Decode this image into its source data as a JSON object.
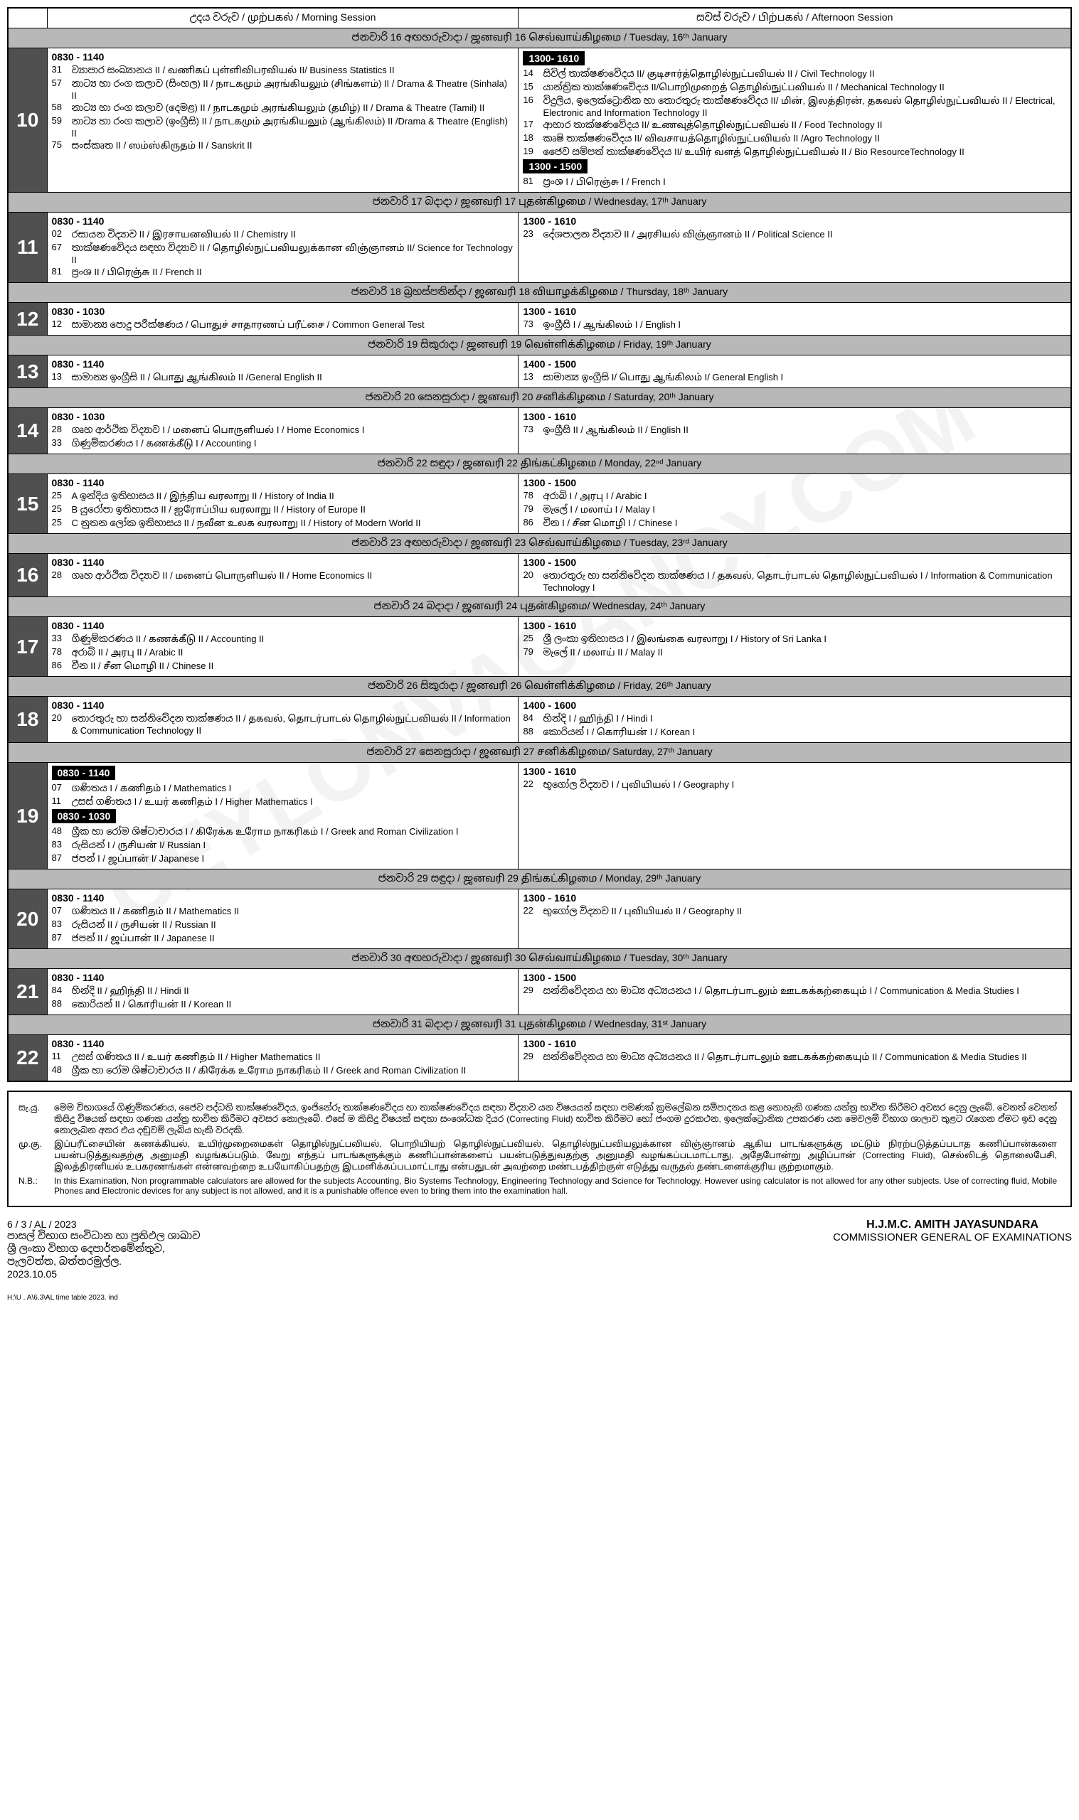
{
  "watermark": "CEYLONVACANCY.COM",
  "headers": {
    "morning": "උදය වරුව / முற்பகல்  / Morning Session",
    "afternoon": "සවස් වරුව / பிற்பகல்  / Afternoon Session"
  },
  "days": [
    {
      "num": "10",
      "date": "ජනවාරි 16 අඟහරුවාදා / ஜனவரி  16   செவ்வாய்கிழமை / Tuesday, 16ᵗʰ January",
      "morning": {
        "time": "0830 - 1140",
        "items": [
          {
            "code": "31",
            "text": "ව්‍යාපාර සංඛ්‍යානය  II / வணிகப்  புள்ளிவிபரவியல் II/ Business Statistics II"
          },
          {
            "code": "57",
            "text": "නාට්‍ය හා රංග කලාව (සිංහල)  II / நாடகமும் அரங்கியலும் (சிங்களம்) II / Drama & Theatre  (Sinhala)  II"
          },
          {
            "code": "58",
            "text": "නාට්‍ය හා රංග කලාව (දෙමළ)  II / நாடகமும் அரங்கியலும் (தமிழ்) II / Drama & Theatre  (Tamil) II"
          },
          {
            "code": "59",
            "text": "නාට්‍ය හා රංග කලාව (ඉංග්‍රීසි)   II / நாடகமும்  அரங்கியலும் (ஆங்கிலம்)   II /Drama & Theatre  (English) II"
          },
          {
            "code": "75",
            "text": "සංස්කෘත  II  / ஸம்ஸ்கிருதம் II / Sanskrit  II"
          }
        ]
      },
      "afternoon": {
        "blocks": [
          {
            "time": "1300- 1610",
            "black": true,
            "items": [
              {
                "code": "14",
                "text": "සිවිල් තාක්ෂණවේදය II/ குடிசார்த்தொழில்நுட்பவியல் II / Civil  Technology II"
              },
              {
                "code": "15",
                "text": "යාන්ත්‍රික තාක්ෂණවේදය II/பொறிமுறைத் தொழில்நுட்பவியல் II / Mechanical Technology II"
              },
              {
                "code": "16",
                "text": "විදුලිය, ඉලෙක්ට්‍රොනික හා තොරතුරු තාක්ෂණවේදය II/ மின், இலத்திரன், தகவல் தொழில்நுட்பவியல் II / Electrical, Electronic and Information Technology II"
              },
              {
                "code": "17",
                "text": "ආහාර තාක්ෂණවේදය II/ உணவுத்தொழில்நுட்பவியல்  II / Food Technology II"
              },
              {
                "code": "18",
                "text": "කෘෂි තාක්ෂණවේදය II/ விவசாயத்தொழில்நுட்பவியல்  II /Agro Technology II"
              },
              {
                "code": "19",
                "text": "ජෛව සම්පත් තාක්ෂණවේදය II/ உயிர்  வளத்  தொழில்நுட்பவியல் II / Bio ResourceTechnology II"
              }
            ]
          },
          {
            "time": "1300 - 1500",
            "black": true,
            "items": [
              {
                "code": "81",
                "text": "ප්‍රංශ I / பிரெஞ்சு I  / French I"
              }
            ]
          }
        ]
      }
    },
    {
      "num": "11",
      "date": "ජනවාරි 17 බදාදා  /  ஜனவரி 17 புதன்கிழமை  /  Wednesday, 17ᵗʰ  January",
      "morning": {
        "time": "0830 - 1140",
        "items": [
          {
            "code": "02",
            "text": "රසායන විද්‍යාව  II / இரசாயனவியல் II / Chemistry II"
          },
          {
            "code": "67",
            "text": "තාක්ෂණවේදය සඳහා විද්‍යාව II / தொழில்நுட்பவியலுக்கான விஞ்ஞானம் II/ Science for Technology II"
          },
          {
            "code": "81",
            "text": "ප්‍රංශ  II / பிரெஞ்சு II / French II"
          }
        ]
      },
      "afternoon": {
        "time": "1300 - 1610",
        "items": [
          {
            "code": "23",
            "text": "දේශපාලන විද්‍යාව II / அரசியல்  விஞ்ஞானம் II / Political Science II"
          }
        ]
      }
    },
    {
      "num": "12",
      "date": "ජනවාරි 18 බ්‍රහස්පතින්දා / ஜனவரி  18  வியாழக்கிழமை  /  Thursday, 18ᵗʰ January",
      "morning": {
        "time": "0830 - 1030",
        "items": [
          {
            "code": "12",
            "text": "සාමාන්‍ය පොදු පරීක්ෂණය / பொதுச்  சாதாரணப் பரீட்சை / Common General Test"
          }
        ]
      },
      "afternoon": {
        "time": "1300 - 1610",
        "items": [
          {
            "code": "73",
            "text": "ඉංග්‍රීසි  I / ஆங்கிலம் I / English I"
          }
        ]
      }
    },
    {
      "num": "13",
      "date": "ජනවාරි 19 සිකුරාදා / ஜனவரி     19 வெள்ளிக்கிழமை / Friday, 19ᵗʰ   January",
      "morning": {
        "time": "0830 - 1140",
        "items": [
          {
            "code": "13",
            "text": "සාමාන්‍ය ඉංග්‍රීසි  II / பொது  ஆங்கிலம் II /General English II"
          }
        ]
      },
      "afternoon": {
        "time": "1400 - 1500",
        "items": [
          {
            "code": "13",
            "text": "සාමාන්‍ය ඉංග්‍රීසි  I/ பொது  ஆங்கிலம் I/ General English  I"
          }
        ]
      }
    },
    {
      "num": "14",
      "date": "ජනවාරි 20 සෙනසුරාදා / ஜனவரி 20  சனிக்கிழமை  / Saturday, 20ᵗʰ January",
      "morning": {
        "time": "0830 - 1030",
        "items": [
          {
            "code": "28",
            "text": "ගෘහ ආර්ථික විද්‍යාව I / மனைப்  பொருளியல் I / Home Economics I"
          },
          {
            "code": "33",
            "text": "ගිණුම්කරණය I / கணக்கீடு I / Accounting I"
          }
        ]
      },
      "afternoon": {
        "time": "1300 - 1610",
        "items": [
          {
            "code": "73",
            "text": "ඉංග්‍රීසි II / ஆங்கிலம் II / English II"
          }
        ]
      }
    },
    {
      "num": "15",
      "date": "ජනවාරි 22 සඳුදා / ஜனவரி 22  திங்கட்கிழமை  / Monday, 22ⁿᵈ January",
      "morning": {
        "time": "0830 - 1140",
        "items": [
          {
            "code": "25",
            "text": "A ඉන්දිය ඉතිහාසය  II  / இந்திய  வரலாறு  II / History of India II"
          },
          {
            "code": "25",
            "text": "B  යුරෝපා ඉතිහාසය  II / ஐரோப்பிய  வரலாறு II / History of  Europe II"
          },
          {
            "code": "25",
            "text": "C නුතන ලෝක ඉතිහාසය  II / நவீன உலக  வரலாறு II / History of Modern World  II"
          }
        ]
      },
      "afternoon": {
        "time": "1300 - 1500",
        "items": [
          {
            "code": "78",
            "text": "අරාබි  I / அரபு I / Arabic I"
          },
          {
            "code": "79",
            "text": "මැලේ  I / மலாய் I / Malay I"
          },
          {
            "code": "86",
            "text": "චීන  I / சீன மொழி  I / Chinese I"
          }
        ]
      }
    },
    {
      "num": "16",
      "date": "ජනවාරි 23 අඟහරුවාදා   / ஜனவரி  23  செவ்வாய்கிழமை  / Tuesday, 23ʳᵈ January",
      "morning": {
        "time": "0830 - 1140",
        "items": [
          {
            "code": "28",
            "text": "ගෘහ ආර්ථික විද්‍යාව II / மனைப்  பொருளியல் II / Home Economics II"
          }
        ]
      },
      "afternoon": {
        "time": "1300 - 1500",
        "items": [
          {
            "code": "20",
            "text": "තොරතුරු හා සන්නිවේදන තාක්ෂණය   I / தகவல், தொடர்பாடல் தொழில்நுட்பவியல்   I / Information & Communication  Technology I"
          }
        ]
      }
    },
    {
      "num": "17",
      "date": "ජනවාරි 24 බදාදා  /  ஜனவரி   24 புதன்கிழமை/ Wednesday,  24ᵗʰ January",
      "morning": {
        "time": "0830 - 1140",
        "items": [
          {
            "code": "33",
            "text": "ගිණුම්කරණය II / கணக்கீடு II / Accounting II"
          },
          {
            "code": "78",
            "text": "අරාබි  II / அரபு II / Arabic II"
          },
          {
            "code": "86",
            "text": "චීන  II / சீன மொழி  II / Chinese II"
          }
        ]
      },
      "afternoon": {
        "time": "1300 - 1610",
        "items": [
          {
            "code": "25",
            "text": "ශ්‍රී ලංකා ඉතිහාසය I / இலங்கை  வரலாறு I / History of  Sri Lanka I"
          },
          {
            "code": "79",
            "text": "මැලේ  II / மலாய் II / Malay II"
          }
        ]
      }
    },
    {
      "num": "18",
      "date": "ජනවාරි 26 සිකුරාදා  /  ஜனவரி   26 வெள்ளிக்கிழமை   /  Friday, 26ᵗʰ   January",
      "morning": {
        "time": "0830 - 1140",
        "items": [
          {
            "code": "20",
            "text": "තොරතුරු හා සන්නිවේදන තාක්ෂණය II / தகவல், தொடர்பாடல் தொழில்நுட்பவியல்   II / Information & Communication Technology II"
          }
        ]
      },
      "afternoon": {
        "time": "1400 - 1600",
        "items": [
          {
            "code": "84",
            "text": "හින්දි I / ஹிந்தி I / Hindi I"
          },
          {
            "code": "88",
            "text": "කොරියන් I / கொரியன்  I / Korean I"
          }
        ]
      }
    },
    {
      "num": "19",
      "date": "ජනවාරි 27 සෙනසුරාදා  / ஜனவரி 27   சனிக்கிழமை/ Saturday, 27ᵗʰ    January",
      "morning": {
        "blocks": [
          {
            "time": "0830 - 1140",
            "black": true,
            "items": [
              {
                "code": "07",
                "text": "ගණිතය I / கணிதம் I / Mathematics I"
              },
              {
                "code": "11",
                "text": "උසස් ගණිතය I / உயர்  கணிதம் I / Higher Mathematics I"
              }
            ]
          },
          {
            "time": "0830 - 1030",
            "black": true,
            "items": [
              {
                "code": "48",
                "text": "ග්‍රීක හා රෝම ශිෂ්ටාචාරය I / கிரேக்க  உரோம நாகரிகம் I / Greek and Roman Civilization I"
              },
              {
                "code": "83",
                "text": "රුසියන්  I / ருசியன்   I/ Russian I"
              },
              {
                "code": "87",
                "text": "ජපන්   I / ஜப்பான்  I/ Japanese I"
              }
            ]
          }
        ]
      },
      "afternoon": {
        "time": "1300 - 1610",
        "items": [
          {
            "code": "22",
            "text": "භුගෝල විද්‍යාව  I / புவியியல் I / Geography I"
          }
        ]
      }
    },
    {
      "num": "20",
      "date": "ජනවාරි 29 සඳුදා / ஜனவரி 29   திங்கட்கிழமை  / Monday, 29ᵗʰ   January",
      "morning": {
        "time": "0830 - 1140",
        "items": [
          {
            "code": "07",
            "text": "ගණිතය II / கணிதம் II / Mathematics II"
          },
          {
            "code": "83",
            "text": "රුසියන්  II / ருசியன்  II / Russian II"
          },
          {
            "code": "87",
            "text": "ජපන්   II / ஜப்பான்  II / Japanese II"
          }
        ]
      },
      "afternoon": {
        "time": "1300 - 1610",
        "items": [
          {
            "code": "22",
            "text": "භුගෝල විද්‍යාව  II / புவியியல் II / Geography II"
          }
        ]
      }
    },
    {
      "num": "21",
      "date": "ජනවාරි 30 අඟහරුවාදා / ஜனவரி  30  செவ்வாய்கிழமை  / Tuesday, 30ᵗʰ   January",
      "morning": {
        "time": "0830 - 1140",
        "items": [
          {
            "code": "84",
            "text": "හින්දි II / ஹிந்தி II / Hindi II"
          },
          {
            "code": "88",
            "text": "කොරියන්  II / கொரியன்  II / Korean II"
          }
        ]
      },
      "afternoon": {
        "time": "1300 - 1500",
        "items": [
          {
            "code": "29",
            "text": "සන්නිවේදනය හා මාධ්‍ය අධ්‍යයනය I / தொடர்பாடலும்  ஊடகக்கற்கையும் I / Communication & Media Studies I"
          }
        ]
      }
    },
    {
      "num": "22",
      "date": "ජනවාරි 31 බදාදා   / ஜனவரி  31 புதன்கிழமை  / Wednesday, 31ˢᵗ January",
      "morning": {
        "time": "0830 - 1140",
        "items": [
          {
            "code": "11",
            "text": "උසස් ගණිතය II / உயர்  கணிதம் II / Higher Mathematics II"
          },
          {
            "code": "48",
            "text": "ග්‍රීක හා රෝම ශිෂ්ටාචාරය II / கிரேக்க  உரோம நாகரிகம் II / Greek and Roman Civilization II"
          }
        ]
      },
      "afternoon": {
        "time": "1300 - 1610",
        "items": [
          {
            "code": "29",
            "text": "සන්නිවේදනය හා මාධ්‍ය අධ්‍යයනය II / தொடர்பாடலும்  ஊடகக்கற்கையும் II / Communication & Media Studies II"
          }
        ]
      }
    }
  ],
  "notes": [
    {
      "label": "සැ.යු.",
      "text": "මෙම විභාගයේ ගිණුම්කරණය, ජෛව පද්ධති තාක්ෂණවේදය, ඉංජිනේරු තාක්ෂණවේදය හා තාක්ෂණවේදය සඳහා විද්‍යාව යන විෂයයන් සඳහා පමණක් ක්‍රමලේඛන සම්පාදනය කළ නොහැකි ගණක යන්ත්‍ර භාවිත කිරීමට අවසර දෙනු ලැබේ. වෙනත් වෙනත් කිසිදු විෂයක් සඳහා ගණක යන්ත්‍ර භාවිත කිරීමට අවසර නොලැබේ. එසේ ම කිසිදු විෂයක් සඳහා සංශෝධක දියර (Correcting Fluid) භාවිත කිරීමට හෝ ජංගම දුරකථන, ඉලෙක්ට්‍රොනික උපකරණ යන මෙවලම් විභාග ශාලාව තුළට රැගෙන ඒමට ඉඩ දෙනු නොලැබන අතර එය දඬුවම් ලැබිය හැකි වරදකි. "
    },
    {
      "label": "மு.கு.",
      "text": "இப்பரீட்சையின் கணக்கியல், உயிர்முறைமைகள் தொழில்நுட்பவியல், பொறியியற் தொழில்நுட்பவியல், தொழில்நுட்பவியலுக்கான விஞ்ஞானம் ஆகிய பாடங்களுக்கு மட்டும் நிரற்படுத்தப்படாத கணிப்பான்களை  பயன்படுத்துவதற்கு அனுமதி வழங்கப்படும். வேறு எந்தப் பாடங்களுக்கும் கணிப்பான்களைப் பயன்படுத்துவதற்கு அனுமதி வழங்கப்படமாட்டாது. அதேபோன்று அழிப்பான் (Correcting Fluid), செல்லிடத் தொலைபேசி, இலத்திரனியல் உபகரணங்கள் என்னவற்றை உபயோகிப்பதற்கு இடமளிக்கப்படமாட்டாது என்பதுடன் அவற்றை மண்டபத்திற்குள் எடுத்து வருதல் தண்டனைக்குரிய குற்றமாகும்."
    },
    {
      "label": "N.B.:",
      "text": "In this Examination, Non programmable calculators are allowed for the subjects Accounting, Bio Systems Technology, Engineering Technology and Science for Technology. However using calculator is not allowed for any other subjects. Use of correcting fluid, Mobile Phones and Electronic devices for any subject is not allowed, and  it is a  punishable offence  even to bring them into the examination hall. "
    }
  ],
  "footer": {
    "ref": "6 / 3 / AL / 2023",
    "left_lines": [
      "පාසල් විභාග සංවිධාන හා ප්‍රතිඵල ශාඛාව",
      "ශ්‍රී ලංකා  විභාග දෙපාර්තමේන්තුව,",
      "පැලවත්ත, බත්තරමුල්ල.",
      "2023.10.05"
    ],
    "right_name": "H.J.M.C. AMITH JAYASUNDARA",
    "right_title": "COMMISSIONER GENERAL OF EXAMINATIONS",
    "small": "H:\\U . A\\6.3\\AL time table 2023. ind"
  }
}
